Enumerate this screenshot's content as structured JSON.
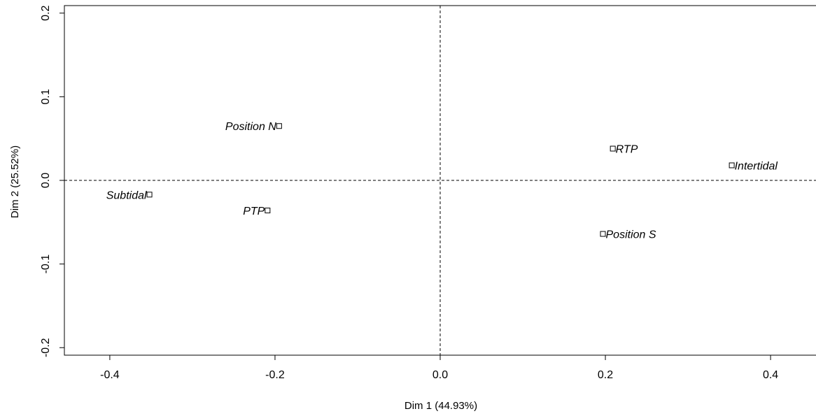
{
  "chart_data": {
    "type": "scatter",
    "title": "",
    "xlabel": "Dim 1 (44.93%)",
    "ylabel": "Dim 2 (25.52%)",
    "xlim": [
      -0.455,
      0.455
    ],
    "ylim": [
      -0.209,
      0.209
    ],
    "xticks": [
      -0.4,
      -0.2,
      0.0,
      0.2,
      0.4
    ],
    "xtick_labels": [
      "-0.4",
      "-0.2",
      "0.0",
      "0.2",
      "0.4"
    ],
    "yticks": [
      -0.2,
      -0.1,
      0.0,
      0.1,
      0.2
    ],
    "ytick_labels": [
      "-0.2",
      "-0.1",
      "0.0",
      "0.1",
      "0.2"
    ],
    "reference_lines": {
      "x": 0.0,
      "y": 0.0,
      "style": "dashed"
    },
    "grid": false,
    "marker": "open-square",
    "points": [
      {
        "label": "Position N",
        "x": -0.195,
        "y": 0.065,
        "label_side": "left"
      },
      {
        "label": "Subtidal",
        "x": -0.352,
        "y": -0.017,
        "label_side": "left"
      },
      {
        "label": "PTP",
        "x": -0.209,
        "y": -0.036,
        "label_side": "left"
      },
      {
        "label": "RTP",
        "x": 0.209,
        "y": 0.038,
        "label_side": "right"
      },
      {
        "label": "Intertidal",
        "x": 0.353,
        "y": 0.018,
        "label_side": "right"
      },
      {
        "label": "Position S",
        "x": 0.197,
        "y": -0.064,
        "label_side": "right"
      }
    ]
  }
}
